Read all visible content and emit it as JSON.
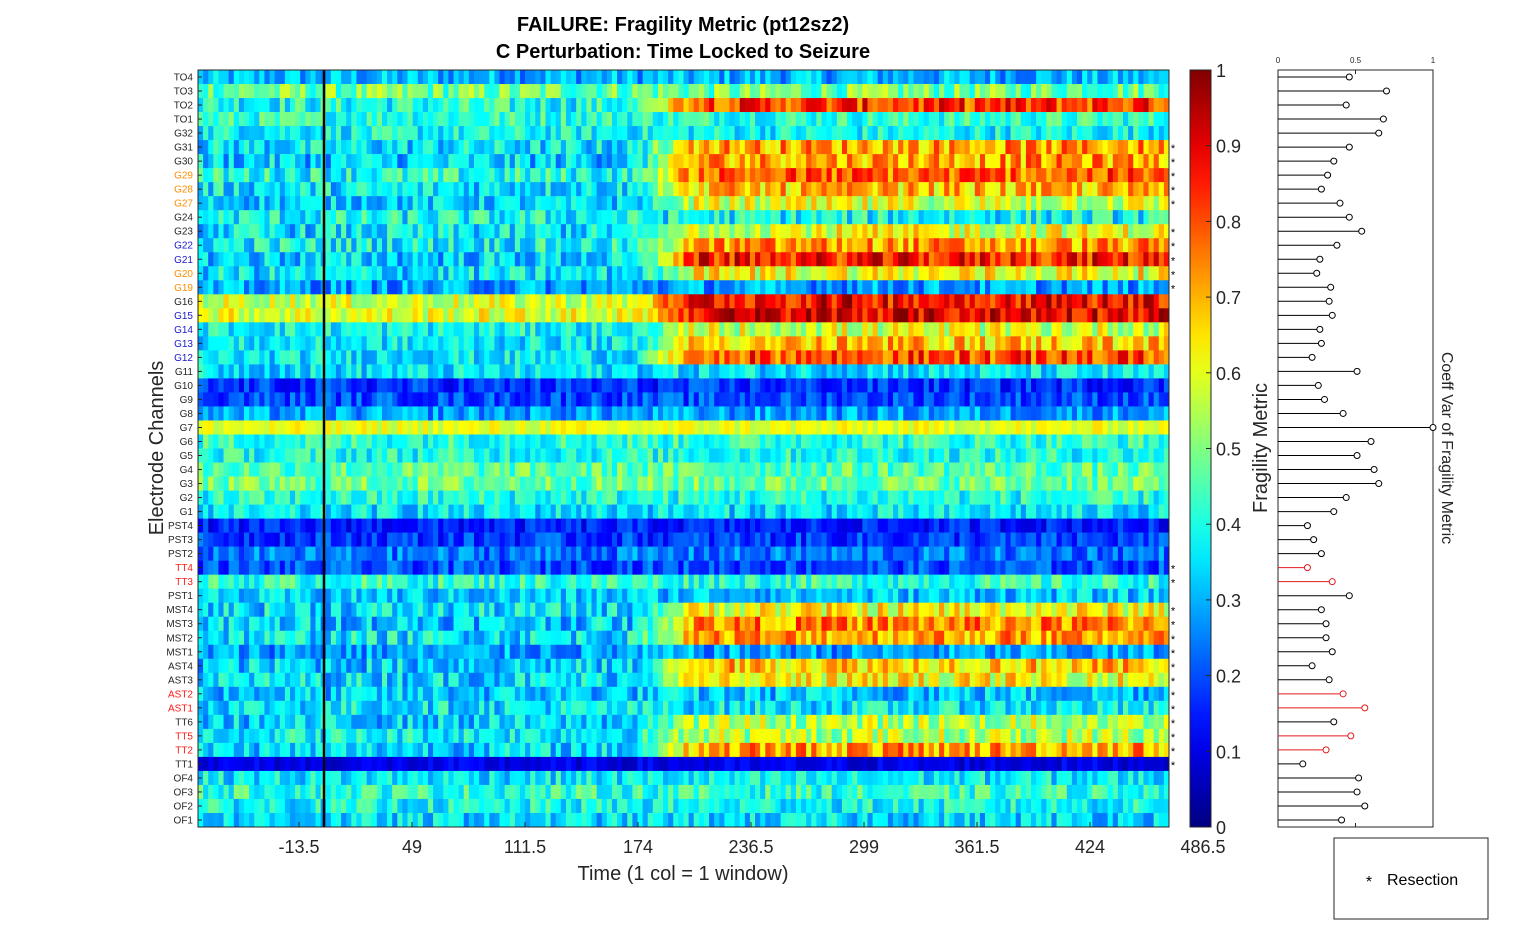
{
  "figure": {
    "title_line1": "FAILURE: Fragility Metric (pt12sz2)",
    "title_line2": "C Perturbation:  Time Locked to Seizure",
    "legend_label": "Resection"
  },
  "colors": {
    "channel_default": "#262626",
    "channel_orange": "#ff8c00",
    "channel_blue": "#1a1acc",
    "channel_red": "#ff1a1a",
    "stem_default": "#000000",
    "stem_red": "#e41a1c"
  },
  "chart_data": [
    {
      "type": "heatmap",
      "xlabel": "Time (1 col = 1 window)",
      "ylabel": "Electrode Channels",
      "colorbar_label": "Fragility Metric",
      "colorbar_ticks": [
        "0",
        "0.1",
        "0.2",
        "0.3",
        "0.4",
        "0.5",
        "0.6",
        "0.7",
        "0.8",
        "0.9",
        "1"
      ],
      "clim": [
        0,
        1
      ],
      "colormap": "jet",
      "x_tick_labels": [
        "-13.5",
        "49",
        "111.5",
        "174",
        "236.5",
        "299",
        "361.5",
        "424",
        "486.5"
      ],
      "seizure_onset_x": -13.5,
      "channels": [
        {
          "name": "TO4",
          "color": "default",
          "resected": false,
          "base": 0.3,
          "var": 0.1
        },
        {
          "name": "TO3",
          "color": "default",
          "resected": false,
          "base": 0.48,
          "var": 0.12
        },
        {
          "name": "TO2",
          "color": "default",
          "resected": false,
          "base": 0.4,
          "var": 0.12,
          "seizure_peak": 0.82
        },
        {
          "name": "TO1",
          "color": "default",
          "resected": false,
          "base": 0.42,
          "var": 0.1
        },
        {
          "name": "G32",
          "color": "default",
          "resected": false,
          "base": 0.38,
          "var": 0.1
        },
        {
          "name": "G31",
          "color": "default",
          "resected": true,
          "base": 0.35,
          "var": 0.12,
          "seizure_peak": 0.72
        },
        {
          "name": "G30",
          "color": "default",
          "resected": true,
          "base": 0.33,
          "var": 0.12,
          "seizure_peak": 0.72
        },
        {
          "name": "G29",
          "color": "orange",
          "resected": true,
          "base": 0.4,
          "var": 0.12,
          "seizure_peak": 0.78
        },
        {
          "name": "G28",
          "color": "orange",
          "resected": true,
          "base": 0.36,
          "var": 0.12,
          "seizure_peak": 0.68
        },
        {
          "name": "G27",
          "color": "orange",
          "resected": true,
          "base": 0.33,
          "var": 0.1,
          "seizure_peak": 0.58
        },
        {
          "name": "G24",
          "color": "default",
          "resected": false,
          "base": 0.38,
          "var": 0.12
        },
        {
          "name": "G23",
          "color": "default",
          "resected": true,
          "base": 0.35,
          "var": 0.12,
          "seizure_peak": 0.6
        },
        {
          "name": "G22",
          "color": "blue",
          "resected": true,
          "base": 0.38,
          "var": 0.12,
          "seizure_peak": 0.72
        },
        {
          "name": "G21",
          "color": "blue",
          "resected": true,
          "base": 0.33,
          "var": 0.12,
          "seizure_peak": 0.85
        },
        {
          "name": "G20",
          "color": "orange",
          "resected": true,
          "base": 0.35,
          "var": 0.12,
          "seizure_peak": 0.62
        },
        {
          "name": "G19",
          "color": "orange",
          "resected": true,
          "base": 0.28,
          "var": 0.1
        },
        {
          "name": "G16",
          "color": "default",
          "resected": false,
          "base": 0.58,
          "var": 0.1,
          "seizure_peak": 0.88
        },
        {
          "name": "G15",
          "color": "blue",
          "resected": false,
          "base": 0.6,
          "var": 0.1,
          "seizure_peak": 0.9
        },
        {
          "name": "G14",
          "color": "blue",
          "resected": false,
          "base": 0.38,
          "var": 0.1,
          "seizure_peak": 0.58
        },
        {
          "name": "G13",
          "color": "blue",
          "resected": false,
          "base": 0.36,
          "var": 0.1,
          "seizure_peak": 0.68
        },
        {
          "name": "G12",
          "color": "blue",
          "resected": false,
          "base": 0.36,
          "var": 0.1,
          "seizure_peak": 0.8
        },
        {
          "name": "G11",
          "color": "default",
          "resected": false,
          "base": 0.35,
          "var": 0.1
        },
        {
          "name": "G10",
          "color": "default",
          "resected": false,
          "base": 0.17,
          "var": 0.08
        },
        {
          "name": "G9",
          "color": "default",
          "resected": false,
          "base": 0.2,
          "var": 0.08
        },
        {
          "name": "G8",
          "color": "default",
          "resected": false,
          "base": 0.28,
          "var": 0.09
        },
        {
          "name": "G7",
          "color": "default",
          "resected": false,
          "base": 0.6,
          "var": 0.06
        },
        {
          "name": "G6",
          "color": "default",
          "resected": false,
          "base": 0.42,
          "var": 0.1
        },
        {
          "name": "G5",
          "color": "default",
          "resected": false,
          "base": 0.4,
          "var": 0.1
        },
        {
          "name": "G4",
          "color": "default",
          "resected": false,
          "base": 0.46,
          "var": 0.1
        },
        {
          "name": "G3",
          "color": "default",
          "resected": false,
          "base": 0.48,
          "var": 0.1
        },
        {
          "name": "G2",
          "color": "default",
          "resected": false,
          "base": 0.4,
          "var": 0.1
        },
        {
          "name": "G1",
          "color": "default",
          "resected": false,
          "base": 0.35,
          "var": 0.1
        },
        {
          "name": "PST4",
          "color": "default",
          "resected": false,
          "base": 0.15,
          "var": 0.07
        },
        {
          "name": "PST3",
          "color": "default",
          "resected": false,
          "base": 0.18,
          "var": 0.08
        },
        {
          "name": "PST2",
          "color": "default",
          "resected": false,
          "base": 0.24,
          "var": 0.09
        },
        {
          "name": "TT4",
          "color": "red",
          "resected": true,
          "base": 0.2,
          "var": 0.08
        },
        {
          "name": "TT3",
          "color": "red",
          "resected": true,
          "base": 0.42,
          "var": 0.1
        },
        {
          "name": "PST1",
          "color": "default",
          "resected": false,
          "base": 0.32,
          "var": 0.1
        },
        {
          "name": "MST4",
          "color": "default",
          "resected": true,
          "base": 0.35,
          "var": 0.12,
          "seizure_peak": 0.62
        },
        {
          "name": "MST3",
          "color": "default",
          "resected": true,
          "base": 0.33,
          "var": 0.12,
          "seizure_peak": 0.74
        },
        {
          "name": "MST2",
          "color": "default",
          "resected": true,
          "base": 0.36,
          "var": 0.12,
          "seizure_peak": 0.72
        },
        {
          "name": "MST1",
          "color": "default",
          "resected": true,
          "base": 0.28,
          "var": 0.1
        },
        {
          "name": "AST4",
          "color": "default",
          "resected": true,
          "base": 0.33,
          "var": 0.12,
          "seizure_peak": 0.68
        },
        {
          "name": "AST3",
          "color": "default",
          "resected": true,
          "base": 0.35,
          "var": 0.12,
          "seizure_peak": 0.62
        },
        {
          "name": "AST2",
          "color": "red",
          "resected": true,
          "base": 0.32,
          "var": 0.11
        },
        {
          "name": "AST1",
          "color": "red",
          "resected": true,
          "base": 0.36,
          "var": 0.11
        },
        {
          "name": "TT6",
          "color": "default",
          "resected": true,
          "base": 0.33,
          "var": 0.11,
          "seizure_peak": 0.55
        },
        {
          "name": "TT5",
          "color": "red",
          "resected": true,
          "base": 0.38,
          "var": 0.11,
          "seizure_peak": 0.55
        },
        {
          "name": "TT2",
          "color": "red",
          "resected": true,
          "base": 0.34,
          "var": 0.11,
          "seizure_peak": 0.72
        },
        {
          "name": "TT1",
          "color": "default",
          "resected": true,
          "base": 0.1,
          "var": 0.05
        },
        {
          "name": "OF4",
          "color": "default",
          "resected": false,
          "base": 0.36,
          "var": 0.1
        },
        {
          "name": "OF3",
          "color": "default",
          "resected": false,
          "base": 0.42,
          "var": 0.1
        },
        {
          "name": "OF2",
          "color": "default",
          "resected": false,
          "base": 0.38,
          "var": 0.1
        },
        {
          "name": "OF1",
          "color": "default",
          "resected": false,
          "base": 0.34,
          "var": 0.1
        }
      ]
    },
    {
      "type": "stem",
      "xlabel": "Coeff Var of Fragility Metric",
      "xlim": [
        0,
        1
      ],
      "x_tick_labels": [
        "0",
        "0.5",
        "1"
      ],
      "values": [
        0.46,
        0.7,
        0.44,
        0.68,
        0.65,
        0.46,
        0.36,
        0.32,
        0.28,
        0.4,
        0.46,
        0.54,
        0.38,
        0.27,
        0.25,
        0.34,
        0.33,
        0.35,
        0.27,
        0.28,
        0.22,
        0.51,
        0.26,
        0.3,
        0.42,
        1.0,
        0.6,
        0.51,
        0.62,
        0.65,
        0.44,
        0.36,
        0.19,
        0.23,
        0.28,
        0.19,
        0.35,
        0.46,
        0.28,
        0.31,
        0.31,
        0.35,
        0.22,
        0.33,
        0.42,
        0.56,
        0.36,
        0.47,
        0.31,
        0.16,
        0.52,
        0.51,
        0.56,
        0.41
      ],
      "red_rows": [
        35,
        36,
        44,
        45,
        47,
        48
      ]
    }
  ]
}
